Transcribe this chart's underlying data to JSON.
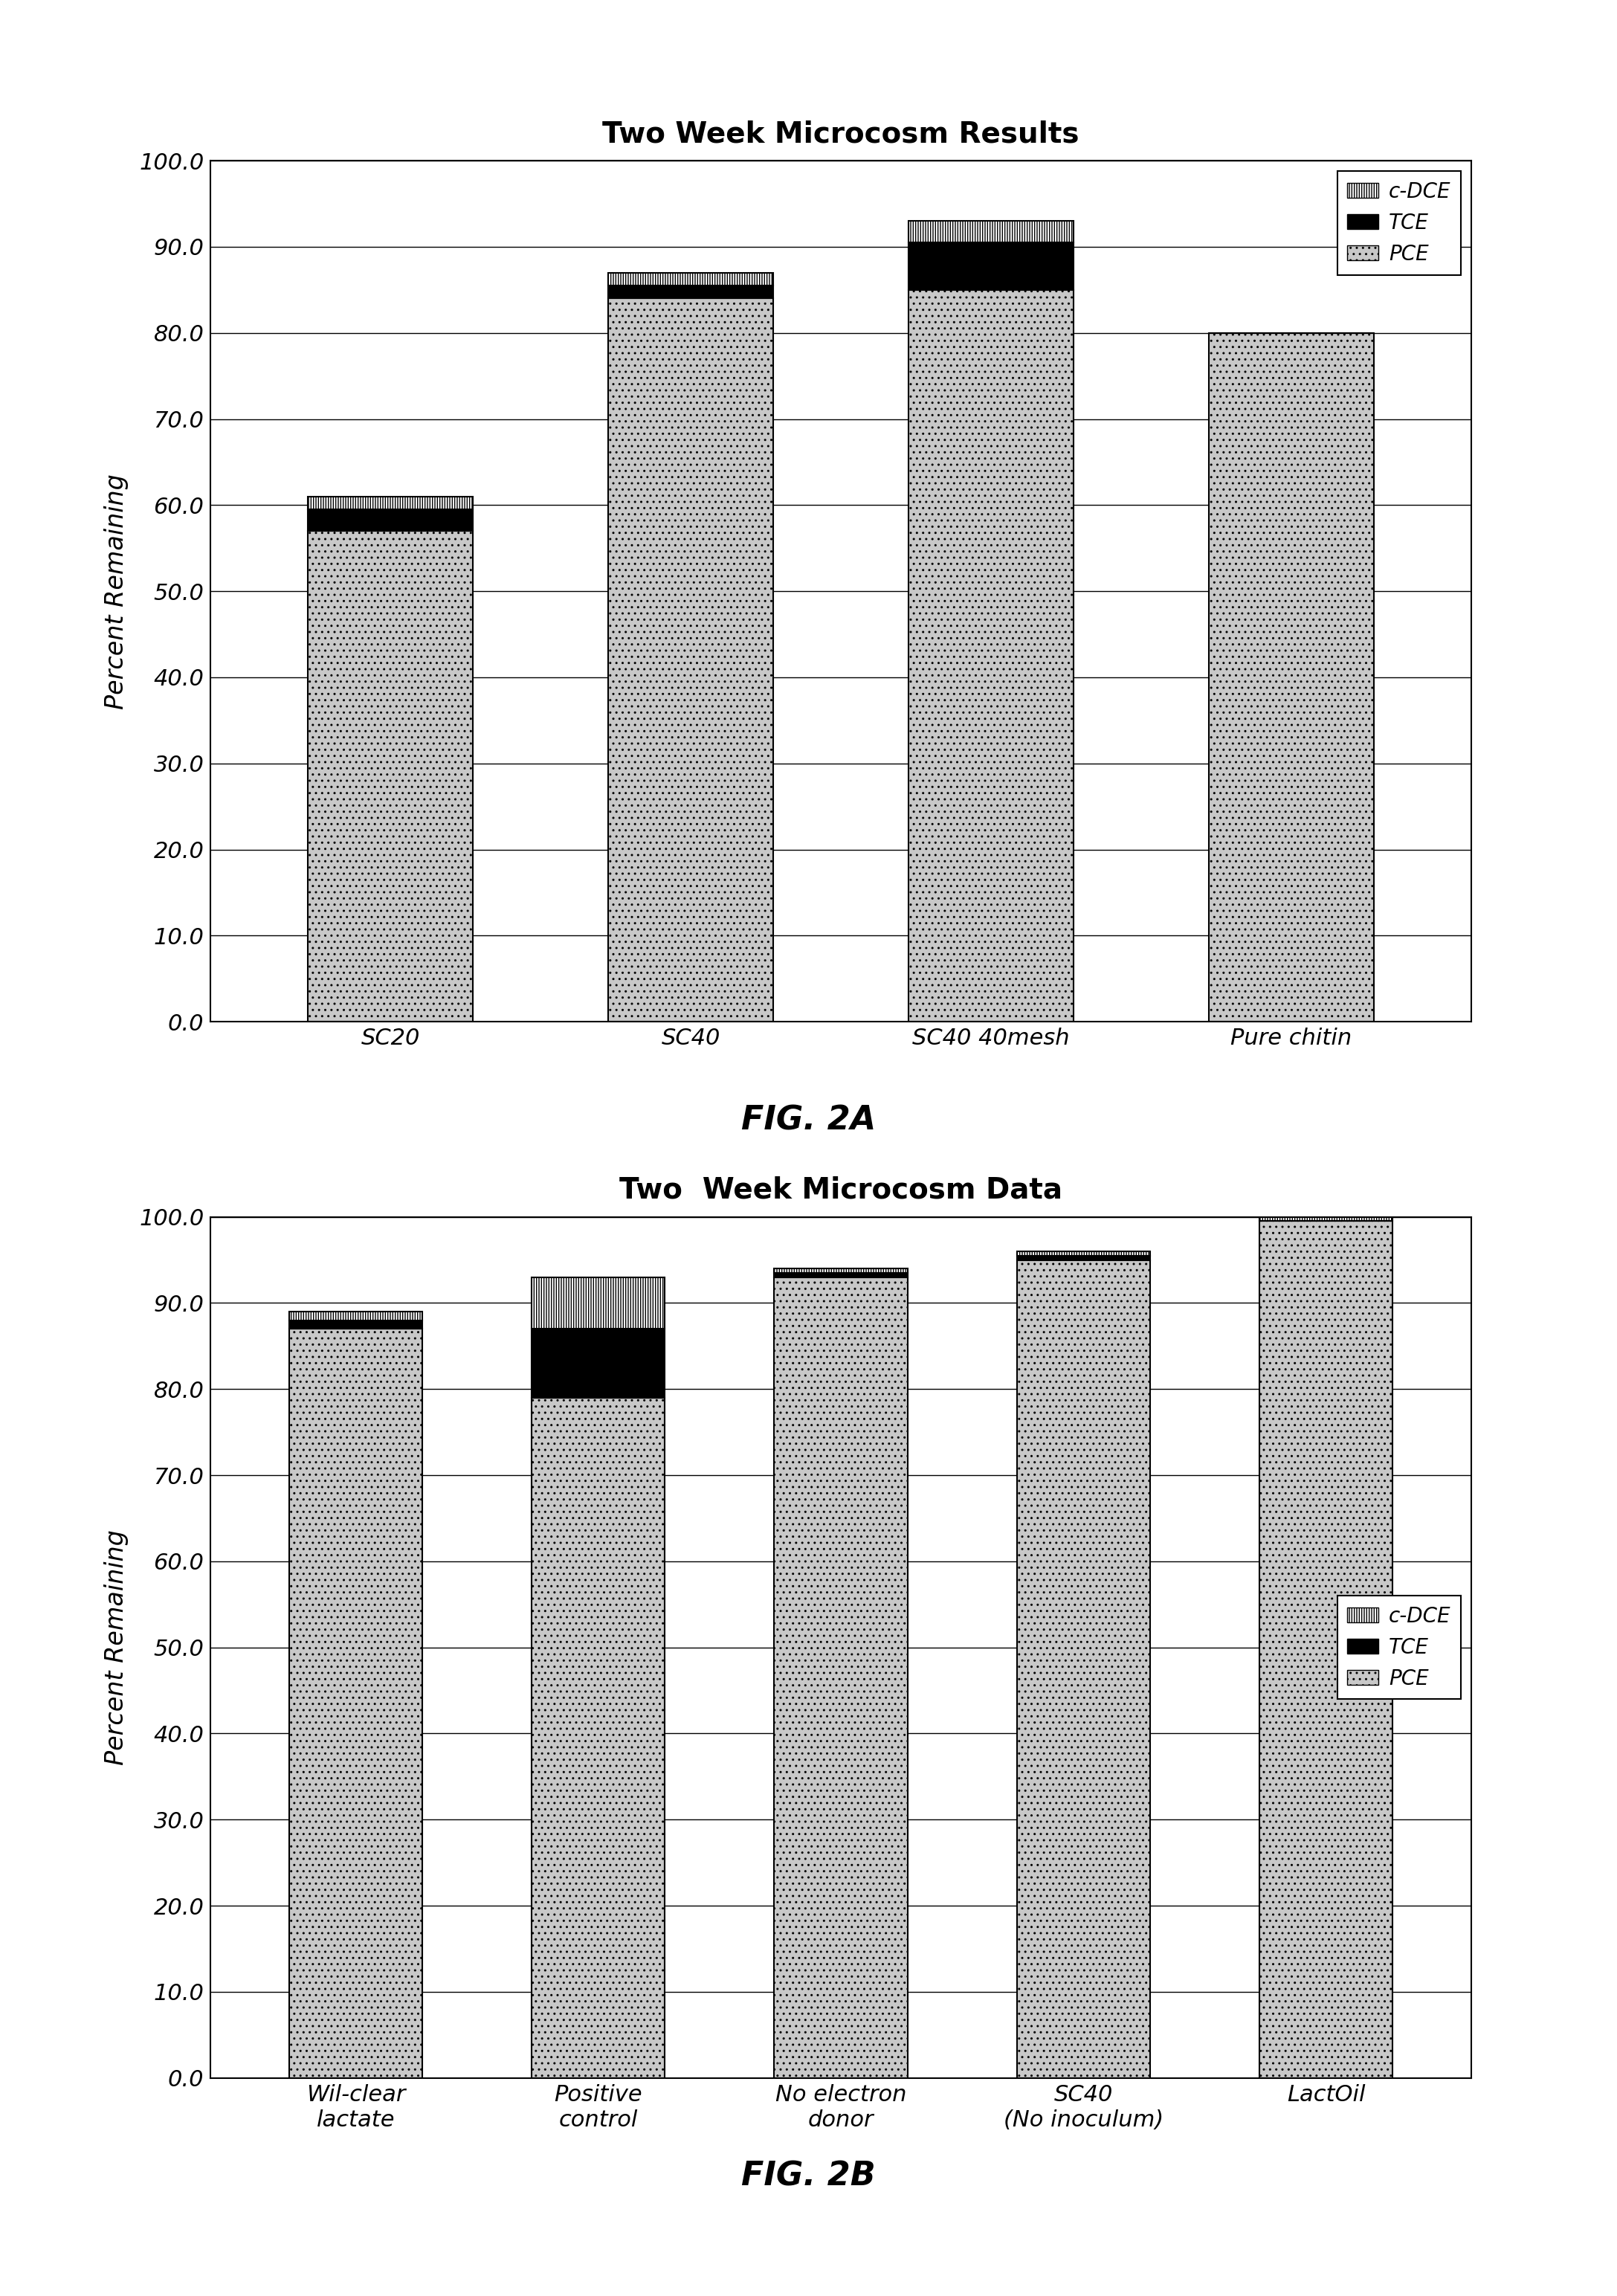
{
  "fig2a": {
    "title": "Two Week Microcosm Results",
    "categories": [
      "SC20",
      "SC40",
      "SC40 40mesh",
      "Pure chitin"
    ],
    "pce": [
      57.0,
      84.0,
      85.0,
      80.0
    ],
    "tce": [
      2.5,
      1.5,
      5.5,
      0.0
    ],
    "cdce": [
      1.5,
      1.5,
      2.5,
      0.0
    ],
    "ylabel": "Percent Remaining",
    "ylim": [
      0.0,
      100.0
    ],
    "yticks": [
      0.0,
      10.0,
      20.0,
      30.0,
      40.0,
      50.0,
      60.0,
      70.0,
      80.0,
      90.0,
      100.0
    ],
    "legend_loc": "upper right",
    "fig_label": "FIG. 2A"
  },
  "fig2b": {
    "title": "Two  Week Microcosm Data",
    "categories": [
      "Wil-clear\nlactate",
      "Positive\ncontrol",
      "No electron\ndonor",
      "SC40\n(No inoculum)",
      "LactOil"
    ],
    "pce": [
      87.0,
      79.0,
      93.0,
      95.0,
      99.5
    ],
    "tce": [
      1.0,
      8.0,
      0.5,
      0.5,
      0.0
    ],
    "cdce": [
      1.0,
      6.0,
      0.5,
      0.5,
      0.5
    ],
    "ylabel": "Percent Remaining",
    "ylim": [
      0.0,
      100.0
    ],
    "yticks": [
      0.0,
      10.0,
      20.0,
      30.0,
      40.0,
      50.0,
      60.0,
      70.0,
      80.0,
      90.0,
      100.0
    ],
    "legend_loc": "center right",
    "fig_label": "FIG. 2B"
  },
  "colors": {
    "pce_hatch": "..",
    "pce_facecolor": "#c8c8c8",
    "pce_edgecolor": "#000000",
    "tce_facecolor": "#000000",
    "tce_edgecolor": "#000000",
    "cdce_hatch": "|||||",
    "cdce_facecolor": "#ffffff",
    "cdce_edgecolor": "#000000"
  },
  "bar_width": 0.55,
  "title_fontsize": 28,
  "tick_fontsize": 22,
  "ylabel_fontsize": 24,
  "legend_fontsize": 20,
  "fig_label_fontsize": 32
}
